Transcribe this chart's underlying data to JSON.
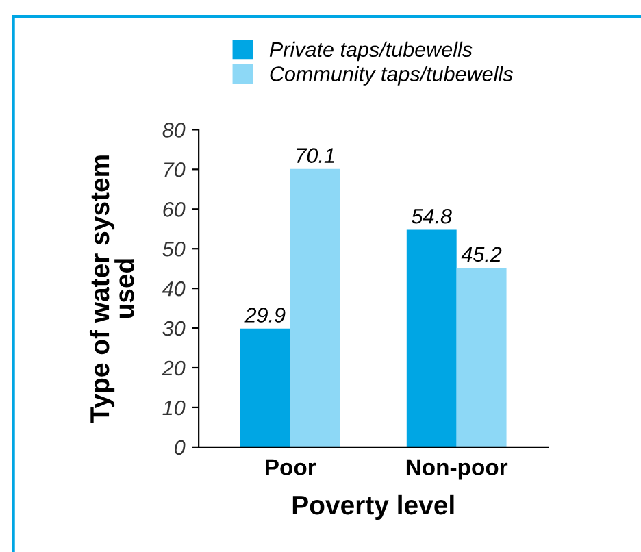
{
  "chart_data": {
    "type": "bar",
    "ylabel": "Type of water system\nused",
    "xlabel": "Poverty level",
    "categories": [
      "Poor",
      "Non-poor"
    ],
    "series": [
      {
        "name": "Private taps/tubewells",
        "color": "#00a6e4",
        "values": [
          29.9,
          54.8
        ]
      },
      {
        "name": "Community taps/tubewells",
        "color": "#8dd8f6",
        "values": [
          70.1,
          45.2
        ]
      }
    ],
    "ylim": [
      0,
      80
    ],
    "yticks": [
      0,
      10,
      20,
      30,
      40,
      50,
      60,
      70,
      80
    ],
    "data_labels": true,
    "legend": "top",
    "grid": false
  }
}
